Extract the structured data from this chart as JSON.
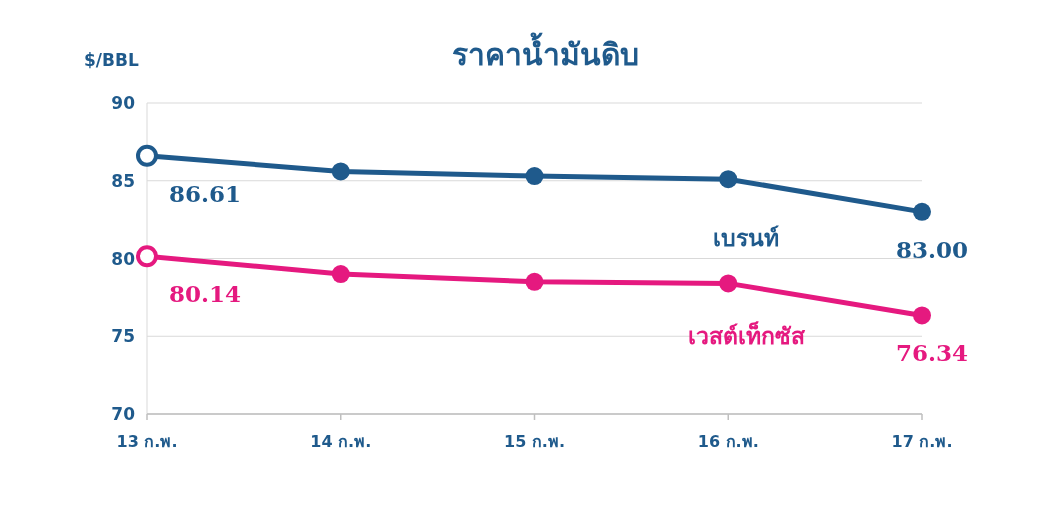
{
  "chart_data": {
    "type": "line",
    "title": "ราคาน้ำมันดิบ",
    "ylabel": "$/BBL",
    "categories": [
      "13 ก.พ.",
      "14 ก.พ.",
      "15 ก.พ.",
      "16 ก.พ.",
      "17 ก.พ."
    ],
    "series": [
      {
        "name": "เบรนท์",
        "color": "#1f5a8c",
        "values": [
          86.61,
          85.6,
          85.3,
          85.1,
          83.0
        ],
        "value_labels": [
          "86.61",
          null,
          null,
          null,
          "83.00"
        ]
      },
      {
        "name": "เวสต์เท็กซัส",
        "color": "#e5197f",
        "values": [
          80.14,
          79.0,
          78.5,
          78.4,
          76.34
        ],
        "value_labels": [
          "80.14",
          null,
          null,
          null,
          "76.34"
        ]
      }
    ],
    "ylim": [
      70,
      90
    ],
    "yticks": [
      70,
      75,
      80,
      85,
      90
    ],
    "grid": "y",
    "marker": "circle",
    "line_style": "solid"
  }
}
